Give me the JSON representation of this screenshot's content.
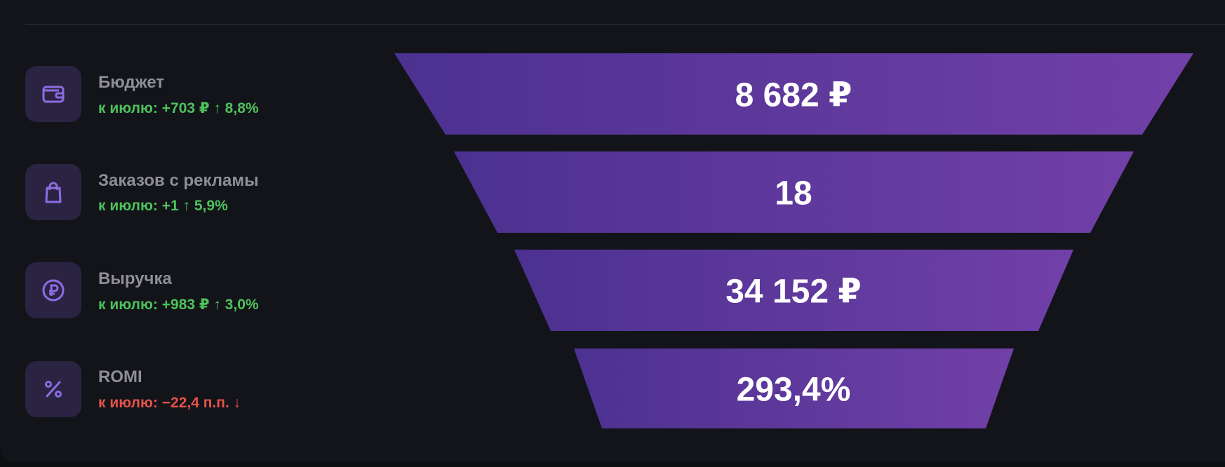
{
  "metrics": [
    {
      "label": "Бюджет",
      "change": "к июлю: +703 ₽ ↑ 8,8%",
      "value": "8 682 ₽"
    },
    {
      "label": "Заказов с рекламы",
      "change": "к июлю: +1 ↑ 5,9%",
      "value": "18"
    },
    {
      "label": "Выручка",
      "change": "к июлю: +983 ₽ ↑ 3,0%",
      "value": "34 152 ₽"
    },
    {
      "label": "ROMI",
      "change": "к июлю: −22,4 п.п. ↓",
      "value": "293,4%"
    }
  ]
}
